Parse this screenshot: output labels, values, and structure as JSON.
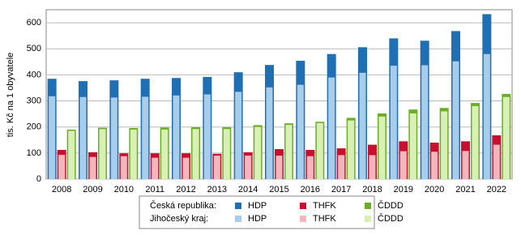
{
  "chart_data": {
    "type": "bar",
    "y_label": "tis. Kč na 1 obyvatele",
    "categories": [
      "2008",
      "2009",
      "2010",
      "2011",
      "2012",
      "2013",
      "2014",
      "2015",
      "2016",
      "2017",
      "2018",
      "2019",
      "2020",
      "2021",
      "2022"
    ],
    "legend_rows": [
      "Česká republika:",
      "Jihočeský kraj:"
    ],
    "series": [
      {
        "name": "HDP",
        "color": "#1f6fb5",
        "values": [
          385,
          376,
          379,
          385,
          388,
          392,
          410,
          438,
          454,
          480,
          506,
          540,
          531,
          568,
          633
        ]
      },
      {
        "name": "THFK",
        "color": "#c8102e",
        "values": [
          112,
          103,
          99,
          99,
          99,
          97,
          103,
          115,
          112,
          118,
          132,
          145,
          140,
          145,
          168
        ]
      },
      {
        "name": "ČDDD",
        "color": "#6ab023",
        "values": [
          190,
          197,
          196,
          198,
          199,
          199,
          207,
          214,
          220,
          235,
          252,
          267,
          273,
          292,
          327
        ]
      },
      {
        "name": "HDP",
        "color": "#a8cdea",
        "values": [
          318,
          315,
          313,
          316,
          321,
          325,
          335,
          352,
          362,
          390,
          408,
          435,
          437,
          452,
          480
        ]
      },
      {
        "name": "THFK",
        "color": "#f4b6bd",
        "values": [
          93,
          85,
          88,
          82,
          82,
          90,
          90,
          90,
          88,
          92,
          92,
          107,
          105,
          108,
          132
        ]
      },
      {
        "name": "ČDDD",
        "color": "#d8efb6",
        "values": [
          185,
          192,
          190,
          190,
          192,
          192,
          200,
          208,
          215,
          225,
          240,
          252,
          260,
          280,
          315
        ]
      }
    ],
    "ylim": [
      0,
      650
    ],
    "yticks": [
      0,
      100,
      200,
      300,
      400,
      500,
      600
    ],
    "grid": true
  }
}
